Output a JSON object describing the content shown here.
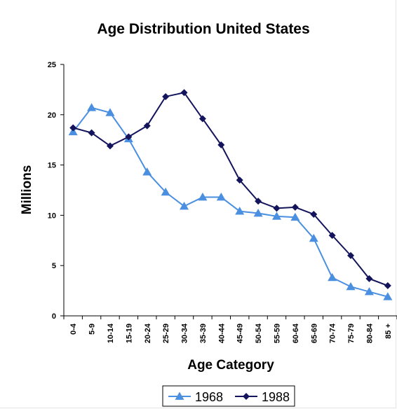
{
  "chart_data": {
    "type": "line",
    "title": "Age Distribution United States",
    "xlabel": "Age Category",
    "ylabel": "Millions",
    "ylim": [
      0,
      25
    ],
    "yticks": [
      "0",
      "5",
      "10",
      "15",
      "20",
      "25"
    ],
    "grid": false,
    "legend": "bottom",
    "categories": [
      "0-4",
      "5-9",
      "10-14",
      "15-19",
      "20-24",
      "25-29",
      "30-34",
      "35-39",
      "40-44",
      "45-49",
      "50-54",
      "55-59",
      "60-64",
      "65-69",
      "70-74",
      "75-79",
      "80-84",
      "85 +"
    ],
    "series": [
      {
        "name": "1968",
        "color": "#4a8fe0",
        "marker": "triangle",
        "values": [
          18.3,
          20.7,
          20.2,
          17.6,
          14.3,
          12.3,
          10.9,
          11.8,
          11.8,
          10.4,
          10.2,
          9.9,
          9.8,
          7.7,
          3.8,
          2.9,
          2.4,
          1.9
        ]
      },
      {
        "name": "1988",
        "color": "#14145c",
        "marker": "diamond",
        "values": [
          18.7,
          18.2,
          16.9,
          17.8,
          18.9,
          21.8,
          22.2,
          19.6,
          17.0,
          13.5,
          11.4,
          10.7,
          10.8,
          10.1,
          8.0,
          6.0,
          3.7,
          3.0
        ]
      }
    ]
  }
}
